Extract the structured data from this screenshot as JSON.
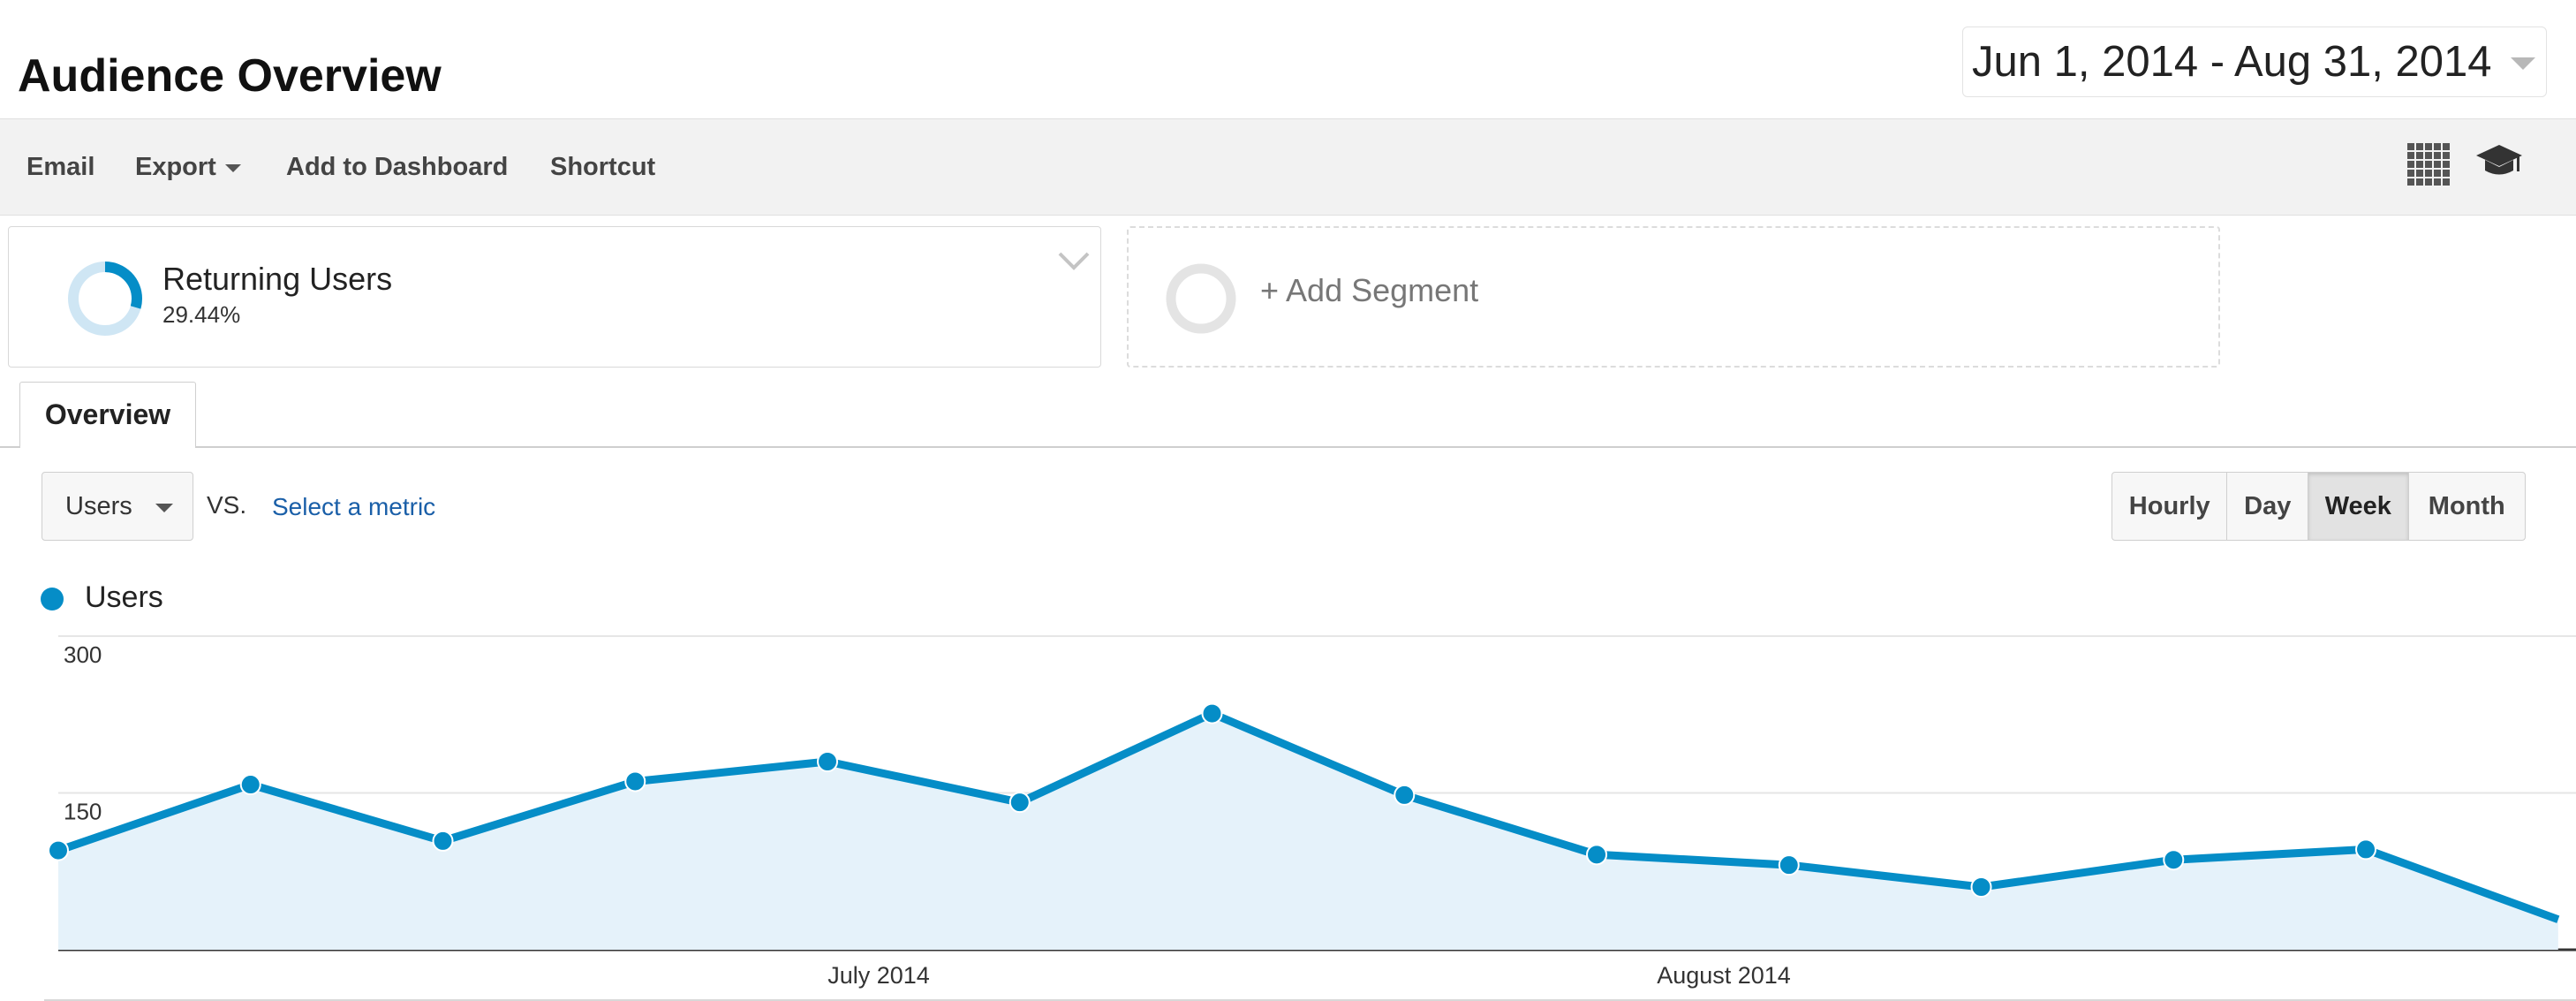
{
  "header": {
    "title": "Audience Overview",
    "date_range": "Jun 1, 2014 - Aug 31, 2014"
  },
  "toolbar": {
    "email": "Email",
    "export": "Export",
    "add_to_dashboard": "Add to Dashboard",
    "shortcut": "Shortcut"
  },
  "segments": {
    "active": {
      "name": "Returning Users",
      "percent": "29.44%",
      "percent_value": 29.44
    },
    "add_label": "+ Add Segment"
  },
  "tabs": [
    {
      "label": "Overview",
      "active": true
    }
  ],
  "metric": {
    "selected": "Users",
    "vs": "VS.",
    "select_metric": "Select a metric"
  },
  "granularity": {
    "options": [
      "Hourly",
      "Day",
      "Week",
      "Month"
    ],
    "selected": "Week"
  },
  "colors": {
    "series": "#058dc7",
    "fill": "#e5f2fa",
    "link": "#1a5fa8"
  },
  "chart_data": {
    "type": "area",
    "legend": [
      "Users"
    ],
    "legend_position": "top-left",
    "series": [
      {
        "name": "Users",
        "values": [
          95,
          158,
          104,
          161,
          180,
          141,
          226,
          148,
          91,
          81,
          60,
          86,
          96,
          29
        ]
      }
    ],
    "ylim": [
      0,
      300
    ],
    "y_ticks": [
      "300",
      "150"
    ],
    "x_labels": [
      "July 2014",
      "August 2014"
    ],
    "grid": true
  }
}
